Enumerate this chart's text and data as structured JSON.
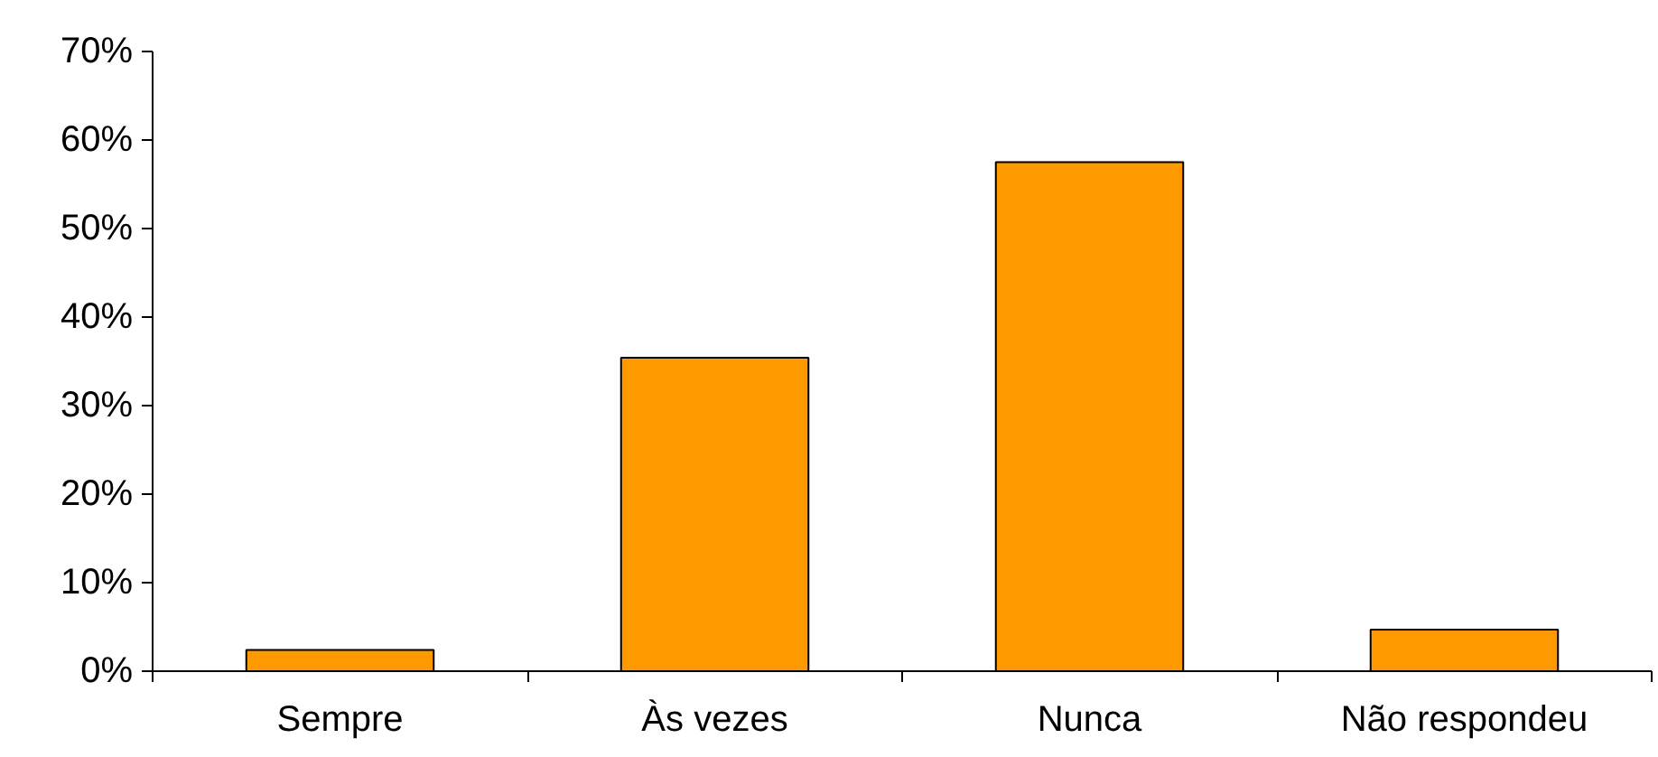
{
  "chart_data": {
    "type": "bar",
    "categories": [
      "Sempre",
      "Às vezes",
      "Nunca",
      "Não respondeu"
    ],
    "values": [
      2.4,
      35.4,
      57.5,
      4.7
    ],
    "color": "#ff9900",
    "ylim": [
      0,
      70
    ],
    "yticks": [
      {
        "value": 0,
        "label": "0%"
      },
      {
        "value": 10,
        "label": "10%"
      },
      {
        "value": 20,
        "label": "20%"
      },
      {
        "value": 30,
        "label": "30%"
      },
      {
        "value": 40,
        "label": "40%"
      },
      {
        "value": 50,
        "label": "50%"
      },
      {
        "value": 60,
        "label": "60%"
      },
      {
        "value": 70,
        "label": "70%"
      }
    ],
    "grid": false
  }
}
